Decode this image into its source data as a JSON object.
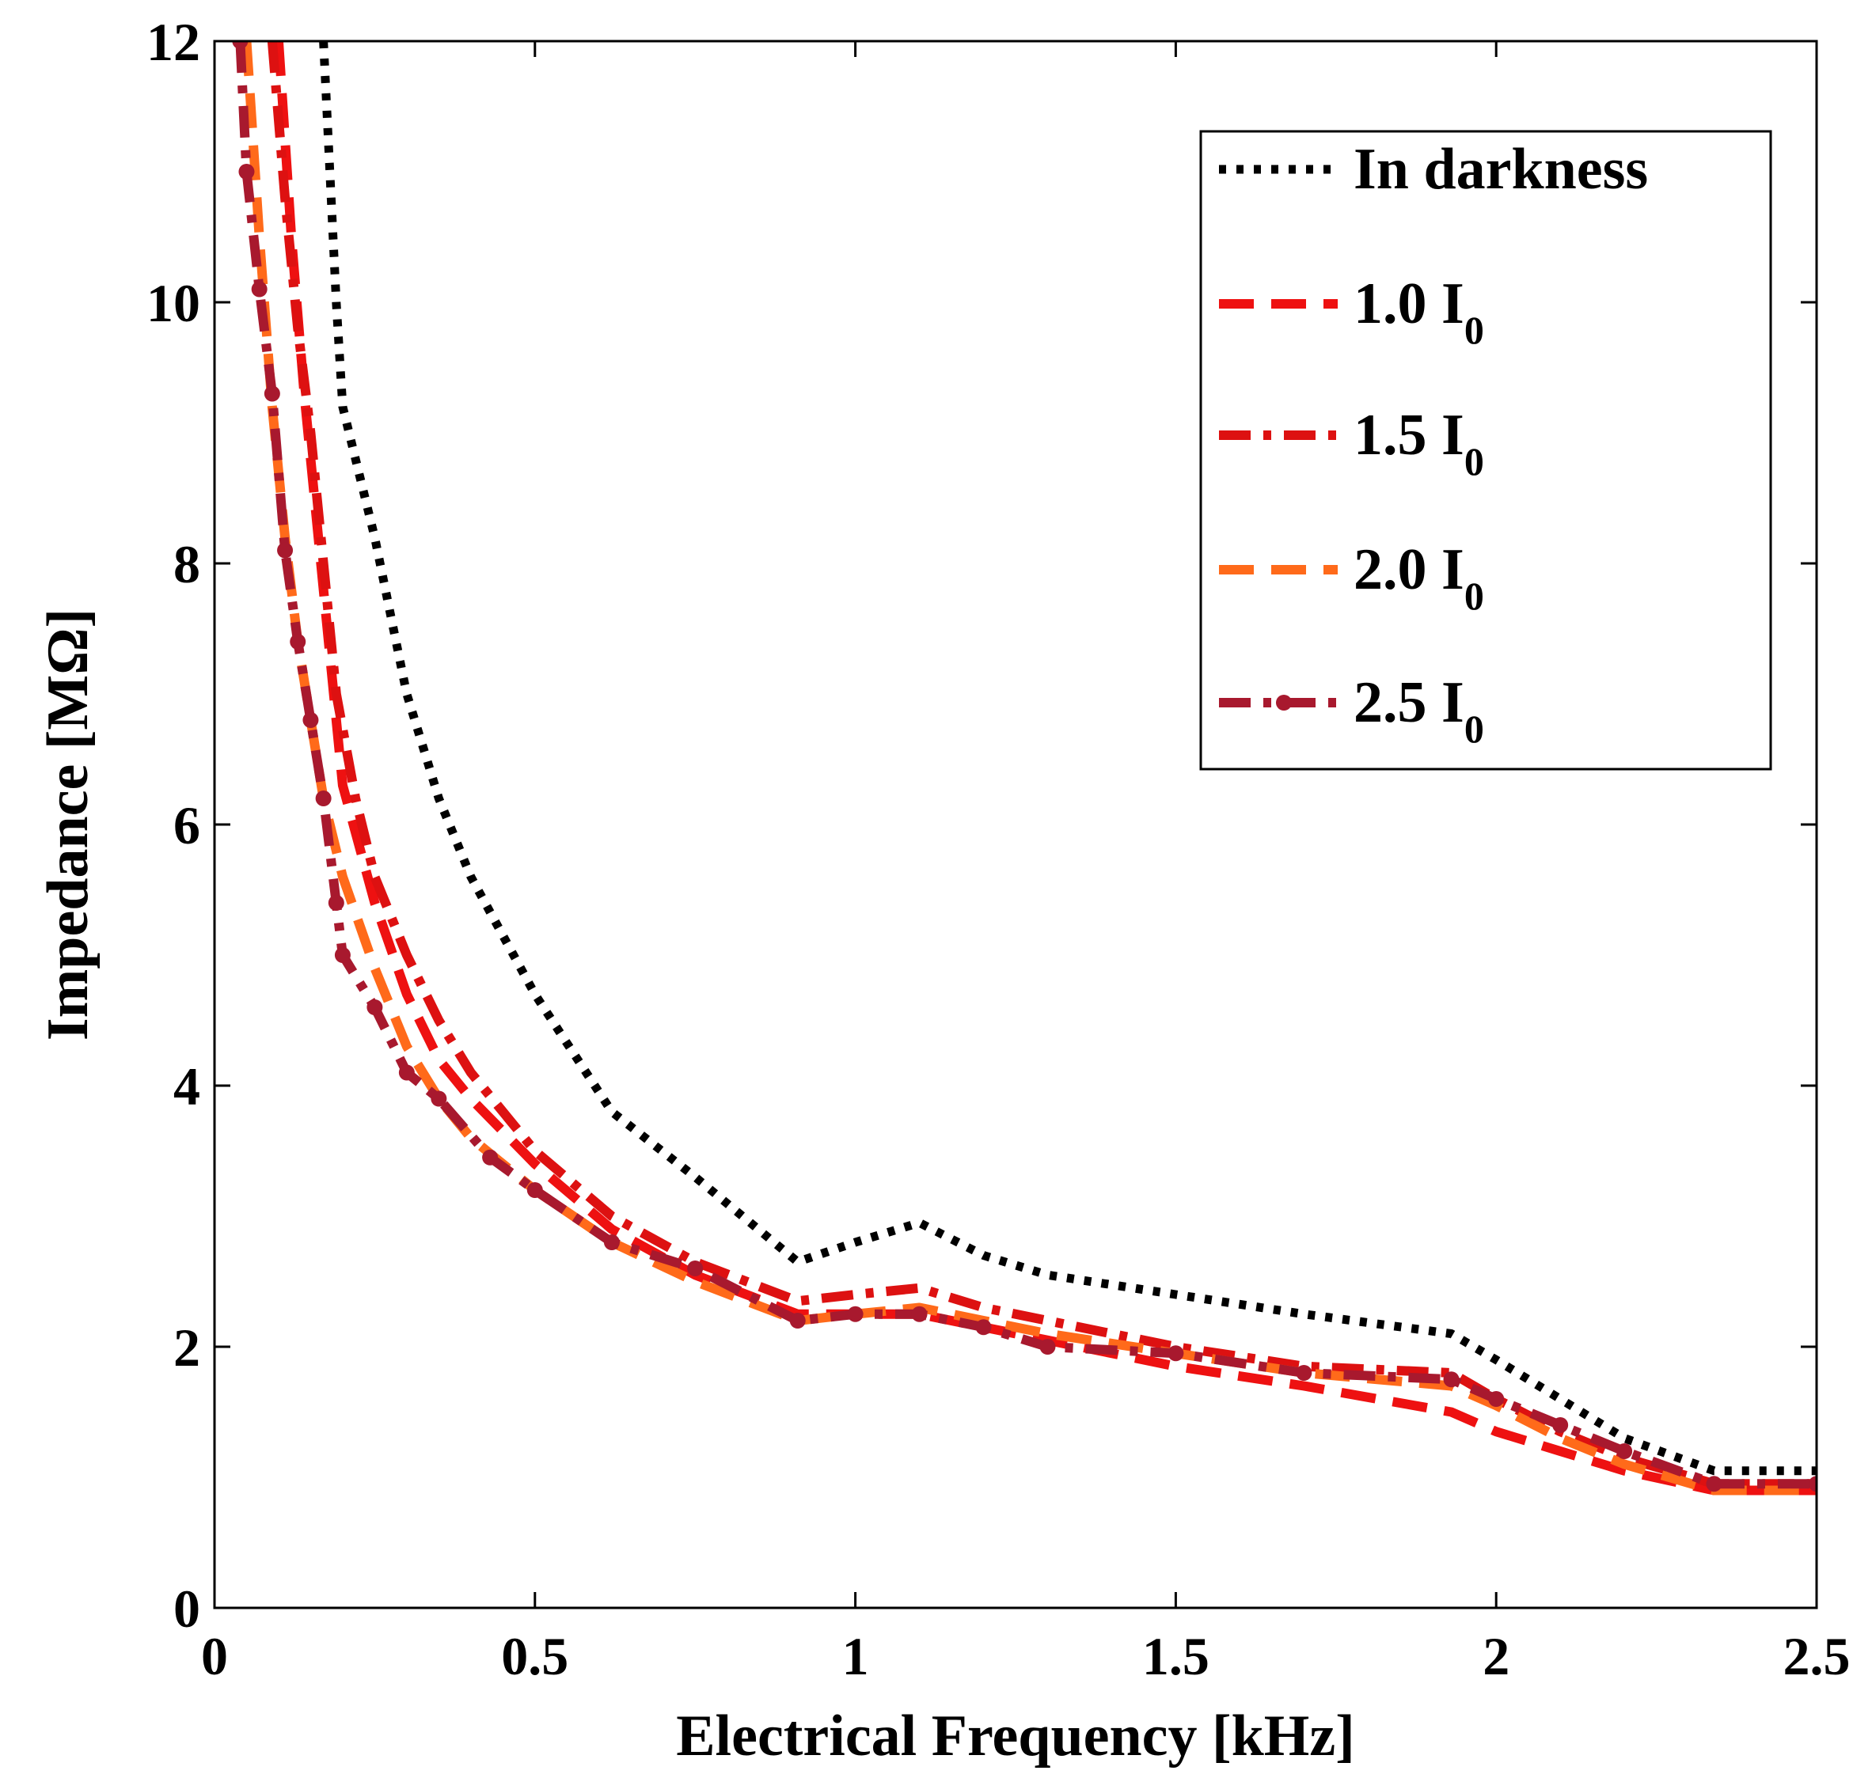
{
  "chart_data": {
    "type": "line",
    "title": "",
    "xlabel": "Electrical Frequency [kHz]",
    "ylabel": "Impedance [MΩ]",
    "xlim": [
      0,
      2.5
    ],
    "ylim": [
      0,
      12
    ],
    "xticks": [
      0,
      0.5,
      1,
      1.5,
      2,
      2.5
    ],
    "xtick_labels": [
      "0",
      "0.5",
      "1",
      "1.5",
      "2",
      "2.5"
    ],
    "yticks": [
      0,
      2,
      4,
      6,
      8,
      10,
      12
    ],
    "ytick_labels": [
      "0",
      "2",
      "4",
      "6",
      "8",
      "10",
      "12"
    ],
    "grid": false,
    "legend_position": "top-right",
    "series": [
      {
        "name": "In darkness",
        "label_main": "In darkness",
        "label_sub": "",
        "color": "#000000",
        "style": "dotted",
        "x": [
          0.17,
          0.18,
          0.19,
          0.2,
          0.25,
          0.3,
          0.35,
          0.4,
          0.5,
          0.62,
          0.75,
          0.91,
          1.0,
          1.1,
          1.2,
          1.3,
          1.5,
          1.7,
          1.93,
          2.0,
          2.1,
          2.2,
          2.34,
          2.5
        ],
        "y": [
          12.0,
          11.0,
          10.0,
          9.2,
          8.2,
          7.0,
          6.2,
          5.6,
          4.7,
          3.8,
          3.3,
          2.65,
          2.8,
          2.95,
          2.7,
          2.55,
          2.4,
          2.25,
          2.1,
          1.9,
          1.6,
          1.3,
          1.05,
          1.05
        ]
      },
      {
        "name": "1.0 I0",
        "label_main": "1.0 I",
        "label_sub": "0",
        "color": "#ee1111",
        "style": "dashed",
        "x": [
          0.1,
          0.12,
          0.14,
          0.16,
          0.18,
          0.2,
          0.25,
          0.3,
          0.35,
          0.4,
          0.5,
          0.62,
          0.75,
          0.91,
          1.0,
          1.1,
          1.2,
          1.3,
          1.5,
          1.7,
          1.93,
          2.0,
          2.1,
          2.2,
          2.34,
          2.5
        ],
        "y": [
          12.0,
          10.5,
          9.3,
          8.3,
          7.3,
          6.3,
          5.4,
          4.7,
          4.2,
          3.9,
          3.4,
          2.9,
          2.55,
          2.25,
          2.25,
          2.25,
          2.15,
          2.05,
          1.85,
          1.7,
          1.5,
          1.35,
          1.2,
          1.05,
          0.9,
          0.9
        ]
      },
      {
        "name": "1.5 I0",
        "label_main": "1.5 I",
        "label_sub": "0",
        "color": "#dd1111",
        "style": "dashdot",
        "x": [
          0.09,
          0.11,
          0.13,
          0.15,
          0.17,
          0.19,
          0.22,
          0.25,
          0.3,
          0.35,
          0.4,
          0.5,
          0.62,
          0.75,
          0.91,
          1.0,
          1.1,
          1.2,
          1.3,
          1.5,
          1.7,
          1.93,
          2.0,
          2.1,
          2.2,
          2.34,
          2.5
        ],
        "y": [
          12.0,
          10.8,
          9.8,
          9.0,
          8.0,
          7.0,
          6.2,
          5.6,
          5.0,
          4.5,
          4.1,
          3.5,
          3.0,
          2.65,
          2.35,
          2.4,
          2.45,
          2.3,
          2.2,
          2.0,
          1.85,
          1.8,
          1.6,
          1.35,
          1.15,
          0.95,
          0.95
        ]
      },
      {
        "name": "2.0 I0",
        "label_main": "2.0 I",
        "label_sub": "0",
        "color": "#ff6a1a",
        "style": "dashed",
        "x": [
          0.05,
          0.07,
          0.09,
          0.11,
          0.13,
          0.15,
          0.17,
          0.2,
          0.25,
          0.3,
          0.35,
          0.4,
          0.5,
          0.62,
          0.75,
          0.91,
          1.0,
          1.1,
          1.2,
          1.3,
          1.5,
          1.7,
          1.93,
          2.0,
          2.1,
          2.2,
          2.34,
          2.5
        ],
        "y": [
          12.0,
          10.5,
          9.2,
          8.2,
          7.4,
          6.8,
          6.2,
          5.6,
          4.9,
          4.3,
          3.9,
          3.6,
          3.2,
          2.8,
          2.5,
          2.2,
          2.25,
          2.3,
          2.2,
          2.1,
          1.95,
          1.8,
          1.7,
          1.55,
          1.3,
          1.1,
          0.9,
          0.9
        ]
      },
      {
        "name": "2.5 I0",
        "label_main": "2.5 I",
        "label_sub": "0",
        "color": "#a8192e",
        "style": "dashdot-marker",
        "x": [
          0.04,
          0.05,
          0.07,
          0.09,
          0.11,
          0.13,
          0.15,
          0.17,
          0.19,
          0.2,
          0.25,
          0.3,
          0.35,
          0.43,
          0.5,
          0.62,
          0.75,
          0.91,
          1.0,
          1.1,
          1.2,
          1.3,
          1.5,
          1.7,
          1.93,
          2.0,
          2.1,
          2.2,
          2.34,
          2.5
        ],
        "y": [
          12.0,
          11.0,
          10.1,
          9.3,
          8.1,
          7.4,
          6.8,
          6.2,
          5.4,
          5.0,
          4.6,
          4.1,
          3.9,
          3.45,
          3.2,
          2.8,
          2.6,
          2.2,
          2.25,
          2.25,
          2.15,
          2.0,
          1.95,
          1.8,
          1.75,
          1.6,
          1.4,
          1.2,
          0.95,
          0.95
        ]
      }
    ]
  }
}
